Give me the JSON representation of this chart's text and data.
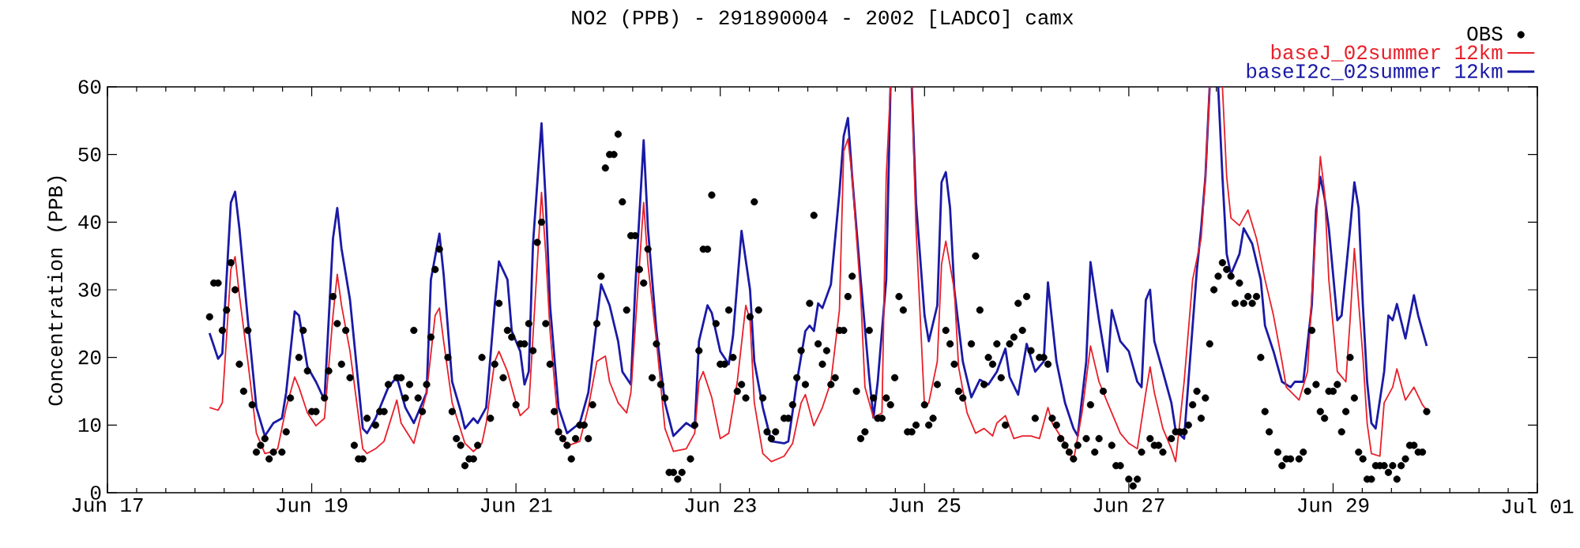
{
  "chart_data": {
    "type": "line",
    "title": "NO2 (PPB) - 291890004 - 2002 [LADCO] camx",
    "ylabel": "Concentration (PPB)",
    "xlim": [
      "2002-06-17T00:00",
      "2002-07-01T00:00"
    ],
    "xticks": [
      {
        "value": "2002-06-17T00:00",
        "label": "Jun 17"
      },
      {
        "value": "2002-06-19T00:00",
        "label": "Jun 19"
      },
      {
        "value": "2002-06-21T00:00",
        "label": "Jun 21"
      },
      {
        "value": "2002-06-23T00:00",
        "label": "Jun 23"
      },
      {
        "value": "2002-06-25T00:00",
        "label": "Jun 25"
      },
      {
        "value": "2002-06-27T00:00",
        "label": "Jun 27"
      },
      {
        "value": "2002-06-29T00:00",
        "label": "Jun 29"
      },
      {
        "value": "2002-07-01T00:00",
        "label": "Jul 01"
      }
    ],
    "ylim": [
      0,
      60
    ],
    "yticks": [
      0,
      10,
      20,
      30,
      40,
      50,
      60
    ],
    "legend": "top right",
    "line_style": "solid",
    "series": [
      {
        "name": "OBS",
        "type": "scatter",
        "marker": "circle",
        "color": "#000000",
        "x": [
          "2002-06-18T00:00",
          "2002-06-18T01:00",
          "2002-06-18T02:00",
          "2002-06-18T03:00",
          "2002-06-18T04:00",
          "2002-06-18T05:00",
          "2002-06-18T06:00",
          "2002-06-18T07:00",
          "2002-06-18T08:00",
          "2002-06-18T09:00",
          "2002-06-18T10:00",
          "2002-06-18T11:00",
          "2002-06-18T12:00",
          "2002-06-18T13:00",
          "2002-06-18T14:00",
          "2002-06-18T15:00",
          "2002-06-18T17:00",
          "2002-06-18T18:00",
          "2002-06-18T19:00",
          "2002-06-18T21:00",
          "2002-06-18T22:00",
          "2002-06-18T23:00",
          "2002-06-19T00:00",
          "2002-06-19T01:00",
          "2002-06-19T03:00",
          "2002-06-19T04:00",
          "2002-06-19T05:00",
          "2002-06-19T06:00",
          "2002-06-19T07:00",
          "2002-06-19T08:00",
          "2002-06-19T09:00",
          "2002-06-19T10:00",
          "2002-06-19T11:00",
          "2002-06-19T12:00",
          "2002-06-19T13:00",
          "2002-06-19T15:00",
          "2002-06-19T16:00",
          "2002-06-19T17:00",
          "2002-06-19T18:00",
          "2002-06-19T20:00",
          "2002-06-19T21:00",
          "2002-06-19T22:00",
          "2002-06-19T23:00",
          "2002-06-20T00:00",
          "2002-06-20T01:00",
          "2002-06-20T02:00",
          "2002-06-20T03:00",
          "2002-06-20T04:00",
          "2002-06-20T05:00",
          "2002-06-20T06:00",
          "2002-06-20T08:00",
          "2002-06-20T09:00",
          "2002-06-20T10:00",
          "2002-06-20T11:00",
          "2002-06-20T12:00",
          "2002-06-20T13:00",
          "2002-06-20T14:00",
          "2002-06-20T15:00",
          "2002-06-20T16:00",
          "2002-06-20T18:00",
          "2002-06-20T19:00",
          "2002-06-20T20:00",
          "2002-06-20T21:00",
          "2002-06-20T22:00",
          "2002-06-20T23:00",
          "2002-06-21T00:00",
          "2002-06-21T01:00",
          "2002-06-21T02:00",
          "2002-06-21T03:00",
          "2002-06-21T04:00",
          "2002-06-21T05:00",
          "2002-06-21T06:00",
          "2002-06-21T07:00",
          "2002-06-21T08:00",
          "2002-06-21T09:00",
          "2002-06-21T10:00",
          "2002-06-21T11:00",
          "2002-06-21T12:00",
          "2002-06-21T13:00",
          "2002-06-21T14:00",
          "2002-06-21T15:00",
          "2002-06-21T16:00",
          "2002-06-21T17:00",
          "2002-06-21T18:00",
          "2002-06-21T19:00",
          "2002-06-21T20:00",
          "2002-06-21T21:00",
          "2002-06-21T22:00",
          "2002-06-21T23:00",
          "2002-06-22T00:00",
          "2002-06-22T01:00",
          "2002-06-22T02:00",
          "2002-06-22T03:00",
          "2002-06-22T04:00",
          "2002-06-22T05:00",
          "2002-06-22T06:00",
          "2002-06-22T07:00",
          "2002-06-22T08:00",
          "2002-06-22T09:00",
          "2002-06-22T10:00",
          "2002-06-22T11:00",
          "2002-06-22T12:00",
          "2002-06-22T13:00",
          "2002-06-22T14:00",
          "2002-06-22T15:00",
          "2002-06-22T17:00",
          "2002-06-22T18:00",
          "2002-06-22T19:00",
          "2002-06-22T20:00",
          "2002-06-22T21:00",
          "2002-06-22T22:00",
          "2002-06-22T23:00",
          "2002-06-23T00:00",
          "2002-06-23T01:00",
          "2002-06-23T02:00",
          "2002-06-23T03:00",
          "2002-06-23T04:00",
          "2002-06-23T05:00",
          "2002-06-23T06:00",
          "2002-06-23T07:00",
          "2002-06-23T08:00",
          "2002-06-23T09:00",
          "2002-06-23T10:00",
          "2002-06-23T11:00",
          "2002-06-23T12:00",
          "2002-06-23T13:00",
          "2002-06-23T15:00",
          "2002-06-23T16:00",
          "2002-06-23T17:00",
          "2002-06-23T18:00",
          "2002-06-23T19:00",
          "2002-06-23T20:00",
          "2002-06-23T21:00",
          "2002-06-23T22:00",
          "2002-06-23T23:00",
          "2002-06-24T00:00",
          "2002-06-24T01:00",
          "2002-06-24T02:00",
          "2002-06-24T03:00",
          "2002-06-24T04:00",
          "2002-06-24T05:00",
          "2002-06-24T06:00",
          "2002-06-24T07:00",
          "2002-06-24T08:00",
          "2002-06-24T09:00",
          "2002-06-24T10:00",
          "2002-06-24T11:00",
          "2002-06-24T12:00",
          "2002-06-24T13:00",
          "2002-06-24T14:00",
          "2002-06-24T15:00",
          "2002-06-24T16:00",
          "2002-06-24T17:00",
          "2002-06-24T18:00",
          "2002-06-24T19:00",
          "2002-06-24T20:00",
          "2002-06-24T21:00",
          "2002-06-24T22:00",
          "2002-06-25T00:00",
          "2002-06-25T01:00",
          "2002-06-25T02:00",
          "2002-06-25T03:00",
          "2002-06-25T05:00",
          "2002-06-25T06:00",
          "2002-06-25T07:00",
          "2002-06-25T08:00",
          "2002-06-25T09:00",
          "2002-06-25T11:00",
          "2002-06-25T12:00",
          "2002-06-25T13:00",
          "2002-06-25T14:00",
          "2002-06-25T15:00",
          "2002-06-25T16:00",
          "2002-06-25T17:00",
          "2002-06-25T18:00",
          "2002-06-25T19:00",
          "2002-06-25T20:00",
          "2002-06-25T21:00",
          "2002-06-25T22:00",
          "2002-06-25T23:00",
          "2002-06-26T00:00",
          "2002-06-26T01:00",
          "2002-06-26T02:00",
          "2002-06-26T03:00",
          "2002-06-26T04:00",
          "2002-06-26T05:00",
          "2002-06-26T06:00",
          "2002-06-26T07:00",
          "2002-06-26T08:00",
          "2002-06-26T09:00",
          "2002-06-26T10:00",
          "2002-06-26T11:00",
          "2002-06-26T12:00",
          "2002-06-26T14:00",
          "2002-06-26T15:00",
          "2002-06-26T16:00",
          "2002-06-26T17:00",
          "2002-06-26T18:00",
          "2002-06-26T20:00",
          "2002-06-26T21:00",
          "2002-06-26T22:00",
          "2002-06-27T00:00",
          "2002-06-27T01:00",
          "2002-06-27T02:00",
          "2002-06-27T03:00",
          "2002-06-27T05:00",
          "2002-06-27T06:00",
          "2002-06-27T07:00",
          "2002-06-27T08:00",
          "2002-06-27T10:00",
          "2002-06-27T11:00",
          "2002-06-27T12:00",
          "2002-06-27T13:00",
          "2002-06-27T14:00",
          "2002-06-27T15:00",
          "2002-06-27T16:00",
          "2002-06-27T17:00",
          "2002-06-27T18:00",
          "2002-06-27T19:00",
          "2002-06-27T20:00",
          "2002-06-27T21:00",
          "2002-06-27T22:00",
          "2002-06-27T23:00",
          "2002-06-28T00:00",
          "2002-06-28T01:00",
          "2002-06-28T02:00",
          "2002-06-28T03:00",
          "2002-06-28T04:00",
          "2002-06-28T05:00",
          "2002-06-28T06:00",
          "2002-06-28T07:00",
          "2002-06-28T08:00",
          "2002-06-28T09:00",
          "2002-06-28T11:00",
          "2002-06-28T12:00",
          "2002-06-28T13:00",
          "2002-06-28T14:00",
          "2002-06-28T16:00",
          "2002-06-28T17:00",
          "2002-06-28T18:00",
          "2002-06-28T19:00",
          "2002-06-28T20:00",
          "2002-06-28T21:00",
          "2002-06-28T22:00",
          "2002-06-28T23:00",
          "2002-06-29T00:00",
          "2002-06-29T01:00",
          "2002-06-29T02:00",
          "2002-06-29T03:00",
          "2002-06-29T04:00",
          "2002-06-29T05:00",
          "2002-06-29T06:00",
          "2002-06-29T07:00",
          "2002-06-29T08:00",
          "2002-06-29T09:00",
          "2002-06-29T10:00",
          "2002-06-29T11:00",
          "2002-06-29T12:00",
          "2002-06-29T13:00",
          "2002-06-29T14:00",
          "2002-06-29T15:00",
          "2002-06-29T16:00",
          "2002-06-29T17:00",
          "2002-06-29T18:00",
          "2002-06-29T19:00",
          "2002-06-29T20:00",
          "2002-06-29T21:00",
          "2002-06-29T22:00"
        ],
        "values": [
          26,
          31,
          31,
          24,
          27,
          34,
          30,
          19,
          15,
          24,
          13,
          6,
          7,
          8,
          5,
          6,
          6,
          9,
          14,
          20,
          24,
          18,
          12,
          12,
          14,
          18,
          29,
          25,
          19,
          24,
          17,
          7,
          5,
          5,
          11,
          10,
          12,
          12,
          16,
          17,
          17,
          14,
          16,
          24,
          14,
          12,
          16,
          23,
          33,
          36,
          20,
          12,
          8,
          7,
          4,
          5,
          5,
          7,
          20,
          11,
          19,
          28,
          17,
          24,
          23,
          13,
          22,
          22,
          25,
          21,
          37,
          40,
          25,
          19,
          12,
          9,
          8,
          7,
          5,
          8,
          10,
          10,
          8,
          13,
          25,
          32,
          48,
          50,
          50,
          53,
          43,
          27,
          38,
          38,
          33,
          31,
          36,
          17,
          22,
          16,
          14,
          3,
          3,
          2,
          3,
          5,
          10,
          21,
          36,
          36,
          44,
          25,
          19,
          19,
          27,
          20,
          15,
          16,
          14,
          26,
          43,
          27,
          14,
          9,
          8,
          9,
          11,
          11,
          13,
          17,
          21,
          16,
          28,
          41,
          22,
          19,
          21,
          16,
          17,
          24,
          24,
          29,
          32,
          15,
          8,
          9,
          24,
          14,
          11,
          11,
          14,
          13,
          17,
          29,
          27,
          9,
          9,
          10,
          13,
          10,
          11,
          16,
          24,
          22,
          19,
          15,
          14,
          22,
          35,
          27,
          16,
          20,
          19,
          22,
          17,
          10,
          22,
          23,
          28,
          24,
          29,
          21,
          11,
          20,
          20,
          19,
          11,
          10,
          8,
          7,
          6,
          5,
          7,
          8,
          13,
          6,
          8,
          15,
          7,
          4,
          4,
          2,
          1,
          2,
          6,
          8,
          7,
          7,
          6,
          8,
          9,
          9,
          9,
          10,
          13,
          15,
          11,
          14,
          22,
          30,
          32,
          34,
          33,
          32,
          28,
          31,
          28,
          29,
          28,
          29,
          20,
          12,
          9,
          6,
          4,
          5,
          5,
          5,
          6,
          15,
          24,
          16,
          12,
          11,
          15,
          15,
          16,
          9,
          12,
          20,
          14,
          6,
          5,
          2,
          2,
          4,
          4,
          4,
          3,
          4,
          2,
          4,
          5,
          7,
          7,
          6,
          6,
          12
        ]
      },
      {
        "name": "baseJ_02summer 12km",
        "color": "#e8202a",
        "x": [
          "2002-06-18T00:00",
          "2002-06-18T02:00",
          "2002-06-18T03:00",
          "2002-06-18T05:00",
          "2002-06-18T06:00",
          "2002-06-18T07:00",
          "2002-06-18T09:00",
          "2002-06-18T11:00",
          "2002-06-18T13:00",
          "2002-06-18T15:00",
          "2002-06-18T16:00",
          "2002-06-18T18:00",
          "2002-06-18T20:00",
          "2002-06-18T21:00",
          "2002-06-18T23:00",
          "2002-06-19T01:00",
          "2002-06-19T03:00",
          "2002-06-19T05:00",
          "2002-06-19T06:00",
          "2002-06-19T07:00",
          "2002-06-19T09:00",
          "2002-06-19T12:00",
          "2002-06-19T13:00",
          "2002-06-19T15:00",
          "2002-06-19T17:00",
          "2002-06-19T20:00",
          "2002-06-19T21:00",
          "2002-06-20T00:00",
          "2002-06-20T03:00",
          "2002-06-20T05:00",
          "2002-06-20T06:00",
          "2002-06-20T07:00",
          "2002-06-20T09:00",
          "2002-06-20T12:00",
          "2002-06-20T14:00",
          "2002-06-20T16:00",
          "2002-06-20T17:00",
          "2002-06-20T19:00",
          "2002-06-20T20:00",
          "2002-06-20T22:00",
          "2002-06-21T00:00",
          "2002-06-21T01:00",
          "2002-06-21T03:00",
          "2002-06-21T04:00",
          "2002-06-21T06:00",
          "2002-06-21T07:00",
          "2002-06-21T08:00",
          "2002-06-21T10:00",
          "2002-06-21T12:00",
          "2002-06-21T15:00",
          "2002-06-21T17:00",
          "2002-06-21T19:00",
          "2002-06-21T21:00",
          "2002-06-21T22:00",
          "2002-06-22T00:00",
          "2002-06-22T02:00",
          "2002-06-22T03:00",
          "2002-06-22T06:00",
          "2002-06-22T07:00",
          "2002-06-22T09:00",
          "2002-06-22T11:00",
          "2002-06-22T13:00",
          "2002-06-22T16:00",
          "2002-06-22T18:00",
          "2002-06-22T19:00",
          "2002-06-22T20:00",
          "2002-06-22T22:00",
          "2002-06-23T00:00",
          "2002-06-23T02:00",
          "2002-06-23T04:00",
          "2002-06-23T06:00",
          "2002-06-23T07:00",
          "2002-06-23T08:00",
          "2002-06-23T10:00",
          "2002-06-23T12:00",
          "2002-06-23T15:00",
          "2002-06-23T17:00",
          "2002-06-23T19:00",
          "2002-06-23T20:00",
          "2002-06-23T22:00",
          "2002-06-24T00:00",
          "2002-06-24T02:00",
          "2002-06-24T04:00",
          "2002-06-24T05:00",
          "2002-06-24T06:00",
          "2002-06-24T07:00",
          "2002-06-24T09:00",
          "2002-06-24T10:00",
          "2002-06-24T12:00",
          "2002-06-24T14:00",
          "2002-06-24T15:00",
          "2002-06-24T16:00",
          "2002-06-24T18:00",
          "2002-06-24T21:00",
          "2002-06-24T22:00",
          "2002-06-25T00:00",
          "2002-06-25T01:00",
          "2002-06-25T03:00",
          "2002-06-25T04:00",
          "2002-06-25T05:00",
          "2002-06-25T07:00",
          "2002-06-25T08:00",
          "2002-06-25T10:00",
          "2002-06-25T12:00",
          "2002-06-25T14:00",
          "2002-06-25T16:00",
          "2002-06-25T17:00",
          "2002-06-25T19:00",
          "2002-06-25T21:00",
          "2002-06-25T23:00",
          "2002-06-26T01:00",
          "2002-06-26T03:00",
          "2002-06-26T05:00",
          "2002-06-26T06:00",
          "2002-06-26T09:00",
          "2002-06-26T11:00",
          "2002-06-26T13:00",
          "2002-06-26T15:00",
          "2002-06-26T17:00",
          "2002-06-26T19:00",
          "2002-06-26T22:00",
          "2002-06-27T00:00",
          "2002-06-27T02:00",
          "2002-06-27T04:00",
          "2002-06-27T05:00",
          "2002-06-27T06:00",
          "2002-06-27T08:00",
          "2002-06-27T10:00",
          "2002-06-27T11:00",
          "2002-06-27T13:00",
          "2002-06-27T15:00",
          "2002-06-27T17:00",
          "2002-06-27T18:00",
          "2002-06-27T19:00",
          "2002-06-27T20:00",
          "2002-06-27T22:00",
          "2002-06-27T23:00",
          "2002-06-28T00:00",
          "2002-06-28T02:00",
          "2002-06-28T04:00",
          "2002-06-28T06:00",
          "2002-06-28T08:00",
          "2002-06-28T10:00",
          "2002-06-28T12:00",
          "2002-06-28T13:00",
          "2002-06-28T16:00",
          "2002-06-28T18:00",
          "2002-06-28T19:00",
          "2002-06-28T21:00",
          "2002-06-28T22:00",
          "2002-06-28T23:00",
          "2002-06-29T01:00",
          "2002-06-29T03:00",
          "2002-06-29T04:00",
          "2002-06-29T05:00",
          "2002-06-29T07:00",
          "2002-06-29T08:00",
          "2002-06-29T09:00",
          "2002-06-29T11:00",
          "2002-06-29T12:00",
          "2002-06-29T14:00",
          "2002-06-29T15:00",
          "2002-06-29T17:00",
          "2002-06-29T19:00",
          "2002-06-29T21:00",
          "2002-06-29T22:00"
        ],
        "values": [
          12.6,
          12.2,
          13.3,
          33.0,
          34.9,
          29.2,
          19.4,
          8.8,
          5.8,
          6.1,
          6.5,
          12.6,
          17.1,
          15.6,
          11.8,
          9.9,
          11.0,
          26.2,
          32.3,
          27.7,
          20.9,
          6.5,
          5.8,
          6.5,
          7.6,
          13.7,
          10.3,
          7.3,
          14.8,
          26.2,
          27.3,
          22.4,
          13.3,
          7.3,
          6.1,
          7.3,
          10.3,
          19.4,
          20.9,
          17.9,
          13.3,
          11.4,
          12.6,
          23.2,
          44.4,
          35.3,
          23.9,
          9.5,
          6.9,
          7.6,
          12.6,
          19.4,
          20.2,
          16.4,
          13.3,
          11.8,
          14.8,
          42.9,
          33.8,
          22.4,
          9.5,
          6.1,
          6.5,
          8.8,
          16.4,
          17.9,
          14.1,
          8.0,
          8.8,
          16.4,
          27.7,
          25.5,
          13.3,
          5.8,
          4.6,
          5.4,
          7.3,
          13.3,
          14.5,
          9.9,
          12.6,
          16.4,
          27.0,
          50.5,
          52.3,
          46.7,
          29.2,
          15.6,
          11.1,
          11.8,
          46.7,
          60,
          null,
          60,
          39.1,
          12.6,
          13.3,
          19.4,
          33.8,
          37.2,
          30.0,
          18.6,
          11.8,
          8.8,
          9.5,
          8.4,
          10.3,
          11.4,
          8.0,
          8.4,
          8.4,
          8.0,
          12.6,
          10.3,
          7.3,
          4.7,
          11.8,
          21.7,
          16.4,
          13.3,
          8.8,
          7.3,
          6.5,
          14.8,
          18.6,
          14.8,
          9.5,
          6.5,
          4.6,
          16.4,
          31.5,
          37.6,
          46.7,
          60,
          null,
          60,
          46.7,
          40.6,
          39.5,
          41.8,
          37.6,
          31.5,
          26.2,
          19.4,
          15.6,
          13.7,
          17.9,
          29.2,
          49.7,
          44.4,
          31.5,
          17.9,
          16.4,
          25.5,
          36.1,
          20.2,
          10.3,
          5.8,
          5.4,
          13.3,
          15.6,
          18.3,
          13.7,
          15.6,
          13.0,
          12.2
        ]
      },
      {
        "name": "baseI2c_02summer 12km",
        "color": "#1a1aa6",
        "x": [
          "2002-06-18T00:00",
          "2002-06-18T02:00",
          "2002-06-18T03:00",
          "2002-06-18T05:00",
          "2002-06-18T06:00",
          "2002-06-18T07:00",
          "2002-06-18T09:00",
          "2002-06-18T11:00",
          "2002-06-18T13:00",
          "2002-06-18T15:00",
          "2002-06-18T17:00",
          "2002-06-18T18:00",
          "2002-06-18T20:00",
          "2002-06-18T21:00",
          "2002-06-18T23:00",
          "2002-06-19T01:00",
          "2002-06-19T03:00",
          "2002-06-19T05:00",
          "2002-06-19T06:00",
          "2002-06-19T07:00",
          "2002-06-19T09:00",
          "2002-06-19T12:00",
          "2002-06-19T13:00",
          "2002-06-19T15:00",
          "2002-06-19T18:00",
          "2002-06-19T20:00",
          "2002-06-19T22:00",
          "2002-06-20T00:00",
          "2002-06-20T03:00",
          "2002-06-20T04:00",
          "2002-06-20T06:00",
          "2002-06-20T07:00",
          "2002-06-20T09:00",
          "2002-06-20T11:00",
          "2002-06-20T12:00",
          "2002-06-20T14:00",
          "2002-06-20T15:00",
          "2002-06-20T17:00",
          "2002-06-20T19:00",
          "2002-06-20T20:00",
          "2002-06-20T22:00",
          "2002-06-20T23:00",
          "2002-06-21T01:00",
          "2002-06-21T02:00",
          "2002-06-21T03:00",
          "2002-06-21T04:00",
          "2002-06-21T06:00",
          "2002-06-21T07:00",
          "2002-06-21T08:00",
          "2002-06-21T10:00",
          "2002-06-21T12:00",
          "2002-06-21T15:00",
          "2002-06-21T17:00",
          "2002-06-21T19:00",
          "2002-06-21T20:00",
          "2002-06-21T22:00",
          "2002-06-22T00:00",
          "2002-06-22T01:00",
          "2002-06-22T03:00",
          "2002-06-22T04:00",
          "2002-06-22T06:00",
          "2002-06-22T07:00",
          "2002-06-22T09:00",
          "2002-06-22T11:00",
          "2002-06-22T13:00",
          "2002-06-22T16:00",
          "2002-06-22T18:00",
          "2002-06-22T19:00",
          "2002-06-22T21:00",
          "2002-06-22T22:00",
          "2002-06-23T00:00",
          "2002-06-23T02:00",
          "2002-06-23T03:00",
          "2002-06-23T05:00",
          "2002-06-23T07:00",
          "2002-06-23T08:00",
          "2002-06-23T10:00",
          "2002-06-23T12:00",
          "2002-06-23T15:00",
          "2002-06-23T16:00",
          "2002-06-23T18:00",
          "2002-06-23T20:00",
          "2002-06-23T21:00",
          "2002-06-23T22:00",
          "2002-06-23T23:00",
          "2002-06-24T00:00",
          "2002-06-24T02:00",
          "2002-06-24T04:00",
          "2002-06-24T05:00",
          "2002-06-24T06:00",
          "2002-06-24T07:00",
          "2002-06-24T09:00",
          "2002-06-24T11:00",
          "2002-06-24T12:00",
          "2002-06-24T13:00",
          "2002-06-24T15:00",
          "2002-06-24T16:00",
          "2002-06-24T18:00",
          "2002-06-24T21:00",
          "2002-06-24T22:00",
          "2002-06-25T00:00",
          "2002-06-25T01:00",
          "2002-06-25T03:00",
          "2002-06-25T04:00",
          "2002-06-25T05:00",
          "2002-06-25T06:00",
          "2002-06-25T07:00",
          "2002-06-25T09:00",
          "2002-06-25T11:00",
          "2002-06-25T13:00",
          "2002-06-25T15:00",
          "2002-06-25T17:00",
          "2002-06-25T19:00",
          "2002-06-25T20:00",
          "2002-06-25T22:00",
          "2002-06-26T00:00",
          "2002-06-26T02:00",
          "2002-06-26T04:00",
          "2002-06-26T05:00",
          "2002-06-26T07:00",
          "2002-06-26T09:00",
          "2002-06-26T11:00",
          "2002-06-26T12:00",
          "2002-06-26T14:00",
          "2002-06-26T15:00",
          "2002-06-26T17:00",
          "2002-06-26T19:00",
          "2002-06-26T20:00",
          "2002-06-26T22:00",
          "2002-06-27T00:00",
          "2002-06-27T02:00",
          "2002-06-27T03:00",
          "2002-06-27T04:00",
          "2002-06-27T05:00",
          "2002-06-27T06:00",
          "2002-06-27T08:00",
          "2002-06-27T10:00",
          "2002-06-27T11:00",
          "2002-06-27T13:00",
          "2002-06-27T14:00",
          "2002-06-27T16:00",
          "2002-06-27T17:00",
          "2002-06-27T18:00",
          "2002-06-27T19:00",
          "2002-06-27T20:00",
          "2002-06-27T21:00",
          "2002-06-27T22:00",
          "2002-06-27T23:00",
          "2002-06-28T00:00",
          "2002-06-28T02:00",
          "2002-06-28T03:00",
          "2002-06-28T05:00",
          "2002-06-28T07:00",
          "2002-06-28T08:00",
          "2002-06-28T10:00",
          "2002-06-28T12:00",
          "2002-06-28T14:00",
          "2002-06-28T15:00",
          "2002-06-28T17:00",
          "2002-06-28T19:00",
          "2002-06-28T20:00",
          "2002-06-28T21:00",
          "2002-06-28T22:00",
          "2002-06-28T23:00",
          "2002-06-29T01:00",
          "2002-06-29T02:00",
          "2002-06-29T04:00",
          "2002-06-29T05:00",
          "2002-06-29T06:00",
          "2002-06-29T07:00",
          "2002-06-29T08:00",
          "2002-06-29T09:00",
          "2002-06-29T10:00",
          "2002-06-29T12:00",
          "2002-06-29T13:00",
          "2002-06-29T14:00",
          "2002-06-29T15:00",
          "2002-06-29T17:00",
          "2002-06-29T19:00",
          "2002-06-29T20:00",
          "2002-06-29T22:00"
        ],
        "values": [
          23.6,
          19.8,
          20.6,
          42.9,
          44.5,
          39.1,
          25.5,
          12.6,
          8.4,
          10.3,
          11.0,
          14.8,
          26.8,
          26.2,
          18.6,
          16.4,
          13.7,
          37.6,
          42.1,
          36.1,
          28.5,
          9.5,
          8.8,
          11.0,
          15.6,
          17.1,
          12.6,
          10.3,
          14.8,
          31.5,
          38.3,
          32.3,
          16.4,
          12.1,
          9.5,
          11.0,
          10.3,
          12.6,
          27.7,
          34.2,
          31.5,
          23.9,
          20.9,
          16.0,
          17.9,
          36.8,
          54.6,
          42.9,
          27.7,
          12.6,
          8.8,
          10.3,
          14.8,
          25.5,
          30.8,
          27.7,
          22.4,
          17.9,
          16.0,
          30.0,
          52.1,
          39.1,
          23.9,
          13.3,
          8.4,
          10.3,
          9.5,
          22.4,
          27.7,
          26.6,
          20.9,
          19.0,
          23.2,
          38.7,
          30.0,
          19.4,
          12.6,
          7.6,
          7.3,
          7.6,
          16.4,
          23.9,
          24.7,
          23.9,
          28.0,
          27.3,
          30.8,
          44.4,
          52.7,
          55.4,
          46.7,
          31.5,
          17.1,
          11.1,
          16.4,
          31.5,
          60,
          null,
          60,
          42.9,
          26.2,
          22.4,
          27.7,
          45.9,
          47.4,
          42.1,
          30.0,
          19.4,
          14.1,
          16.7,
          16.0,
          17.9,
          21.3,
          17.1,
          14.5,
          22.0,
          17.9,
          19.4,
          31.1,
          19.4,
          13.3,
          9.5,
          8.4,
          19.4,
          34.1,
          25.5,
          17.9,
          27.0,
          22.4,
          20.9,
          16.4,
          15.6,
          28.5,
          30.0,
          22.4,
          17.9,
          13.3,
          9.2,
          8.0,
          16.4,
          33.0,
          39.1,
          46.7,
          60,
          null,
          60,
          46.7,
          35.3,
          32.3,
          35.3,
          39.1,
          36.8,
          31.5,
          24.7,
          20.9,
          16.4,
          15.6,
          16.4,
          16.4,
          27.7,
          41.8,
          46.7,
          43.6,
          39.1,
          25.5,
          26.2,
          39.1,
          45.9,
          42.1,
          27.7,
          16.4,
          10.3,
          9.5,
          17.9,
          26.2,
          25.5,
          27.9,
          22.8,
          29.2,
          26.2,
          21.7
        ]
      }
    ]
  }
}
